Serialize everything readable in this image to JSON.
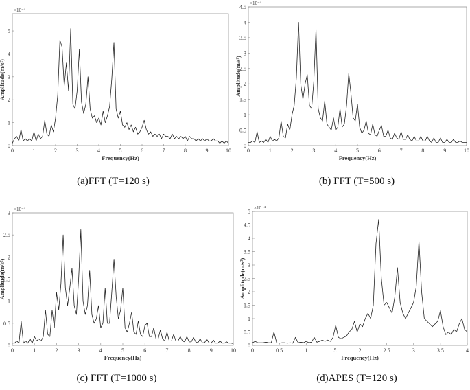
{
  "chart_data": [
    {
      "type": "line",
      "caption": "(a)FFT (T=120 s)",
      "xlabel": "Frequency(Hz)",
      "ylabel": "Amplitude(m/s²)",
      "multiplier": "×10⁻⁴",
      "color": "#222222",
      "xlim": [
        0,
        10
      ],
      "ylim": [
        0,
        5.75
      ],
      "xticks": [
        0,
        1,
        2,
        3,
        4,
        5,
        6,
        7,
        8,
        9,
        10
      ],
      "yticks": [
        0,
        1,
        2,
        3,
        4,
        5
      ],
      "x": [
        0,
        0.1,
        0.2,
        0.3,
        0.4,
        0.5,
        0.6,
        0.7,
        0.8,
        0.9,
        1,
        1.1,
        1.2,
        1.3,
        1.4,
        1.5,
        1.6,
        1.7,
        1.8,
        1.9,
        2,
        2.1,
        2.2,
        2.3,
        2.4,
        2.5,
        2.6,
        2.7,
        2.8,
        2.9,
        3,
        3.1,
        3.2,
        3.3,
        3.4,
        3.5,
        3.6,
        3.7,
        3.8,
        3.9,
        4,
        4.1,
        4.2,
        4.3,
        4.4,
        4.5,
        4.6,
        4.7,
        4.8,
        4.9,
        5,
        5.1,
        5.2,
        5.3,
        5.4,
        5.5,
        5.6,
        5.7,
        5.8,
        5.9,
        6,
        6.1,
        6.2,
        6.3,
        6.4,
        6.5,
        6.6,
        6.7,
        6.8,
        6.9,
        7,
        7.1,
        7.2,
        7.3,
        7.4,
        7.5,
        7.6,
        7.7,
        7.8,
        7.9,
        8,
        8.1,
        8.2,
        8.3,
        8.4,
        8.5,
        8.6,
        8.7,
        8.8,
        8.9,
        9,
        9.1,
        9.2,
        9.3,
        9.4,
        9.5,
        9.6,
        9.7,
        9.8,
        9.9,
        10
      ],
      "values": [
        0.1,
        0.3,
        0.4,
        0.2,
        0.7,
        0.2,
        0.3,
        0.2,
        0.3,
        0.2,
        0.6,
        0.2,
        0.5,
        0.3,
        0.4,
        1.1,
        0.5,
        0.4,
        0.9,
        0.6,
        1.2,
        2.2,
        4.6,
        4.3,
        2.6,
        3.6,
        2.4,
        5.1,
        1.8,
        1.6,
        2.4,
        4.2,
        1.9,
        1.4,
        1.8,
        3.0,
        1.6,
        1.2,
        1.3,
        1.0,
        1.2,
        0.9,
        1.5,
        1.0,
        1.3,
        1.7,
        2.9,
        4.5,
        1.6,
        1.2,
        1.5,
        0.9,
        0.8,
        1.0,
        0.7,
        0.9,
        0.6,
        0.8,
        0.5,
        0.6,
        0.8,
        1.1,
        0.7,
        0.5,
        0.6,
        0.4,
        0.5,
        0.4,
        0.5,
        0.3,
        0.5,
        0.4,
        0.4,
        0.3,
        0.5,
        0.3,
        0.4,
        0.3,
        0.4,
        0.3,
        0.4,
        0.2,
        0.4,
        0.3,
        0.3,
        0.2,
        0.3,
        0.2,
        0.3,
        0.2,
        0.3,
        0.2,
        0.2,
        0.3,
        0.2,
        0.2,
        0.1,
        0.2,
        0.1,
        0.2,
        0.1
      ]
    },
    {
      "type": "line",
      "caption": "(b) FFT (T=500 s)",
      "xlabel": "Frequency(Hz)",
      "ylabel": "Amplitude(m/s²)",
      "multiplier": "×10⁻⁴",
      "color": "#222222",
      "xlim": [
        0,
        10
      ],
      "ylim": [
        0,
        4.5
      ],
      "xticks": [
        0,
        1,
        2,
        3,
        4,
        5,
        6,
        7,
        8,
        9,
        10
      ],
      "yticks": [
        0,
        0.5,
        1,
        1.5,
        2,
        2.5,
        3,
        3.5,
        4,
        4.5
      ],
      "x": [
        0,
        0.1,
        0.2,
        0.3,
        0.4,
        0.5,
        0.6,
        0.7,
        0.8,
        0.9,
        1,
        1.1,
        1.2,
        1.3,
        1.4,
        1.5,
        1.6,
        1.7,
        1.8,
        1.9,
        2,
        2.1,
        2.2,
        2.3,
        2.4,
        2.5,
        2.6,
        2.7,
        2.8,
        2.9,
        3,
        3.1,
        3.2,
        3.3,
        3.4,
        3.5,
        3.6,
        3.7,
        3.8,
        3.9,
        4,
        4.1,
        4.2,
        4.3,
        4.4,
        4.5,
        4.6,
        4.7,
        4.8,
        4.9,
        5,
        5.1,
        5.2,
        5.3,
        5.4,
        5.5,
        5.6,
        5.7,
        5.8,
        5.9,
        6,
        6.1,
        6.2,
        6.3,
        6.4,
        6.5,
        6.6,
        6.7,
        6.8,
        6.9,
        7,
        7.1,
        7.2,
        7.3,
        7.4,
        7.5,
        7.6,
        7.7,
        7.8,
        7.9,
        8,
        8.1,
        8.2,
        8.3,
        8.4,
        8.5,
        8.6,
        8.7,
        8.8,
        8.9,
        9,
        9.1,
        9.2,
        9.3,
        9.4,
        9.5,
        9.6,
        9.7,
        9.8,
        9.9,
        10
      ],
      "values": [
        0.1,
        0.1,
        0.15,
        0.1,
        0.45,
        0.1,
        0.15,
        0.1,
        0.2,
        0.1,
        0.3,
        0.15,
        0.2,
        0.15,
        0.25,
        0.8,
        0.3,
        0.25,
        0.7,
        0.5,
        1.0,
        1.3,
        2.2,
        4.0,
        2.0,
        1.5,
        2.0,
        2.3,
        1.3,
        1.2,
        2.1,
        3.8,
        1.2,
        0.9,
        0.8,
        1.45,
        0.7,
        0.6,
        0.5,
        0.9,
        0.5,
        0.6,
        1.2,
        0.6,
        0.7,
        1.3,
        2.35,
        1.7,
        0.9,
        0.8,
        1.35,
        0.6,
        0.4,
        0.5,
        0.8,
        0.4,
        0.35,
        0.7,
        0.35,
        0.3,
        0.5,
        0.65,
        0.3,
        0.3,
        0.5,
        0.25,
        0.2,
        0.4,
        0.25,
        0.2,
        0.45,
        0.2,
        0.2,
        0.35,
        0.2,
        0.15,
        0.3,
        0.15,
        0.15,
        0.3,
        0.15,
        0.15,
        0.3,
        0.15,
        0.1,
        0.25,
        0.1,
        0.1,
        0.25,
        0.1,
        0.1,
        0.2,
        0.1,
        0.1,
        0.2,
        0.1,
        0.1,
        0.15,
        0.1,
        0.1,
        0.1
      ]
    },
    {
      "type": "line",
      "caption": "(c) FFT (T=1000 s)",
      "xlabel": "Frequency(Hz)",
      "ylabel": "Amplitude(m/s²)",
      "multiplier": "×10⁻⁴",
      "color": "#222222",
      "xlim": [
        0,
        10
      ],
      "ylim": [
        0,
        3
      ],
      "xticks": [
        0,
        1,
        2,
        3,
        4,
        5,
        6,
        7,
        8,
        9,
        10
      ],
      "yticks": [
        0,
        0.5,
        1,
        1.5,
        2,
        2.5,
        3
      ],
      "x": [
        0,
        0.1,
        0.2,
        0.3,
        0.4,
        0.5,
        0.6,
        0.7,
        0.8,
        0.9,
        1,
        1.1,
        1.2,
        1.3,
        1.4,
        1.5,
        1.6,
        1.7,
        1.8,
        1.9,
        2,
        2.1,
        2.2,
        2.3,
        2.4,
        2.5,
        2.6,
        2.7,
        2.8,
        2.9,
        3,
        3.1,
        3.2,
        3.3,
        3.4,
        3.5,
        3.6,
        3.7,
        3.8,
        3.9,
        4,
        4.1,
        4.2,
        4.3,
        4.4,
        4.5,
        4.6,
        4.7,
        4.8,
        4.9,
        5,
        5.1,
        5.2,
        5.3,
        5.4,
        5.5,
        5.6,
        5.7,
        5.8,
        5.9,
        6,
        6.1,
        6.2,
        6.3,
        6.4,
        6.5,
        6.6,
        6.7,
        6.8,
        6.9,
        7,
        7.1,
        7.2,
        7.3,
        7.4,
        7.5,
        7.6,
        7.7,
        7.8,
        7.9,
        8,
        8.1,
        8.2,
        8.3,
        8.4,
        8.5,
        8.6,
        8.7,
        8.8,
        8.9,
        9,
        9.1,
        9.2,
        9.3,
        9.4,
        9.5,
        9.6,
        9.7,
        9.8,
        9.9,
        10
      ],
      "values": [
        0.05,
        0.05,
        0.1,
        0.05,
        0.55,
        0.05,
        0.1,
        0.05,
        0.15,
        0.05,
        0.2,
        0.1,
        0.15,
        0.1,
        0.2,
        0.8,
        0.25,
        0.2,
        0.8,
        0.4,
        1.2,
        0.8,
        1.4,
        2.5,
        1.3,
        0.9,
        1.3,
        1.75,
        0.9,
        0.7,
        1.5,
        2.62,
        1.0,
        0.7,
        0.9,
        1.7,
        0.7,
        0.5,
        0.6,
        0.9,
        0.4,
        0.5,
        1.3,
        0.5,
        0.5,
        1.2,
        1.95,
        1.1,
        0.6,
        0.8,
        1.3,
        0.4,
        0.3,
        0.5,
        0.75,
        0.3,
        0.25,
        0.55,
        0.25,
        0.2,
        0.45,
        0.5,
        0.2,
        0.2,
        0.4,
        0.15,
        0.15,
        0.35,
        0.15,
        0.1,
        0.3,
        0.1,
        0.1,
        0.25,
        0.1,
        0.1,
        0.2,
        0.1,
        0.08,
        0.2,
        0.08,
        0.08,
        0.18,
        0.08,
        0.06,
        0.15,
        0.06,
        0.06,
        0.14,
        0.06,
        0.05,
        0.12,
        0.05,
        0.05,
        0.1,
        0.05,
        0.05,
        0.08,
        0.05,
        0.05,
        0.04
      ]
    },
    {
      "type": "line",
      "caption": "(d)APES (T=120 s)",
      "xlabel": "Frequency(Hz)",
      "ylabel": "Amplitude(m/s²)",
      "multiplier": "×10⁻⁴",
      "color": "#222222",
      "xlim": [
        0,
        4
      ],
      "ylim": [
        0,
        5
      ],
      "xticks": [
        0,
        0.5,
        1,
        1.5,
        2,
        2.5,
        3,
        3.5,
        4
      ],
      "yticks": [
        0,
        0.5,
        1,
        1.5,
        2,
        2.5,
        3,
        3.5,
        4,
        4.5,
        5
      ],
      "x": [
        0,
        0.05,
        0.1,
        0.15,
        0.2,
        0.25,
        0.3,
        0.35,
        0.4,
        0.45,
        0.5,
        0.55,
        0.6,
        0.65,
        0.7,
        0.75,
        0.8,
        0.85,
        0.9,
        0.95,
        1,
        1.05,
        1.1,
        1.15,
        1.2,
        1.25,
        1.3,
        1.35,
        1.4,
        1.45,
        1.5,
        1.55,
        1.6,
        1.65,
        1.7,
        1.75,
        1.8,
        1.85,
        1.9,
        1.95,
        2,
        2.05,
        2.1,
        2.15,
        2.2,
        2.25,
        2.3,
        2.35,
        2.4,
        2.45,
        2.5,
        2.55,
        2.6,
        2.65,
        2.7,
        2.75,
        2.8,
        2.85,
        2.9,
        2.95,
        3,
        3.05,
        3.1,
        3.15,
        3.2,
        3.25,
        3.3,
        3.35,
        3.4,
        3.45,
        3.5,
        3.55,
        3.6,
        3.65,
        3.7,
        3.75,
        3.8,
        3.85,
        3.9,
        3.95,
        4
      ],
      "values": [
        0.1,
        0.15,
        0.1,
        0.1,
        0.1,
        0.12,
        0.1,
        0.1,
        0.5,
        0.1,
        0.08,
        0.1,
        0.1,
        0.08,
        0.1,
        0.08,
        0.3,
        0.1,
        0.12,
        0.1,
        0.15,
        0.1,
        0.12,
        0.3,
        0.12,
        0.15,
        0.2,
        0.15,
        0.2,
        0.15,
        0.3,
        0.75,
        0.3,
        0.25,
        0.3,
        0.35,
        0.5,
        0.6,
        0.9,
        0.5,
        0.8,
        0.7,
        1.0,
        1.2,
        1.0,
        1.5,
        3.8,
        4.7,
        2.5,
        1.5,
        1.6,
        1.4,
        1.2,
        1.8,
        2.9,
        1.6,
        1.2,
        1.0,
        1.2,
        1.4,
        1.6,
        2.2,
        3.9,
        2.0,
        1.0,
        0.9,
        0.8,
        0.7,
        0.8,
        0.9,
        1.3,
        0.7,
        0.4,
        0.5,
        0.4,
        0.6,
        0.5,
        0.8,
        1.0,
        0.6,
        0.5
      ]
    }
  ]
}
